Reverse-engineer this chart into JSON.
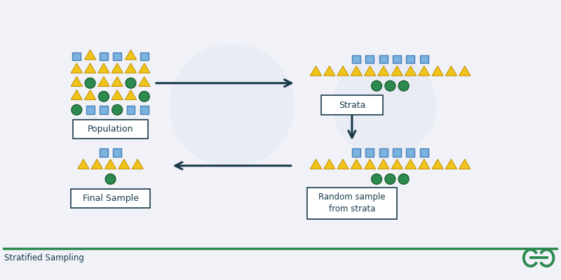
{
  "bg_color": "#f0f2f8",
  "blue": "#7ab3e0",
  "blue_edge": "#4a7db5",
  "yellow": "#f0c419",
  "yellow_edge": "#c8960a",
  "green": "#2d8a4e",
  "green_edge": "#1a5c2e",
  "dark": "#1a3a4a",
  "white": "#ffffff",
  "label_text_color": "#1a3a4a",
  "footer_text": "Stratified Sampling",
  "footer_text_color": "#1a3a4a",
  "footer_line_color": "#2d8a4e",
  "population_label": "Population",
  "strata_label": "Strata",
  "random_sample_label": "Random sample\nfrom strata",
  "final_sample_label": "Final Sample"
}
